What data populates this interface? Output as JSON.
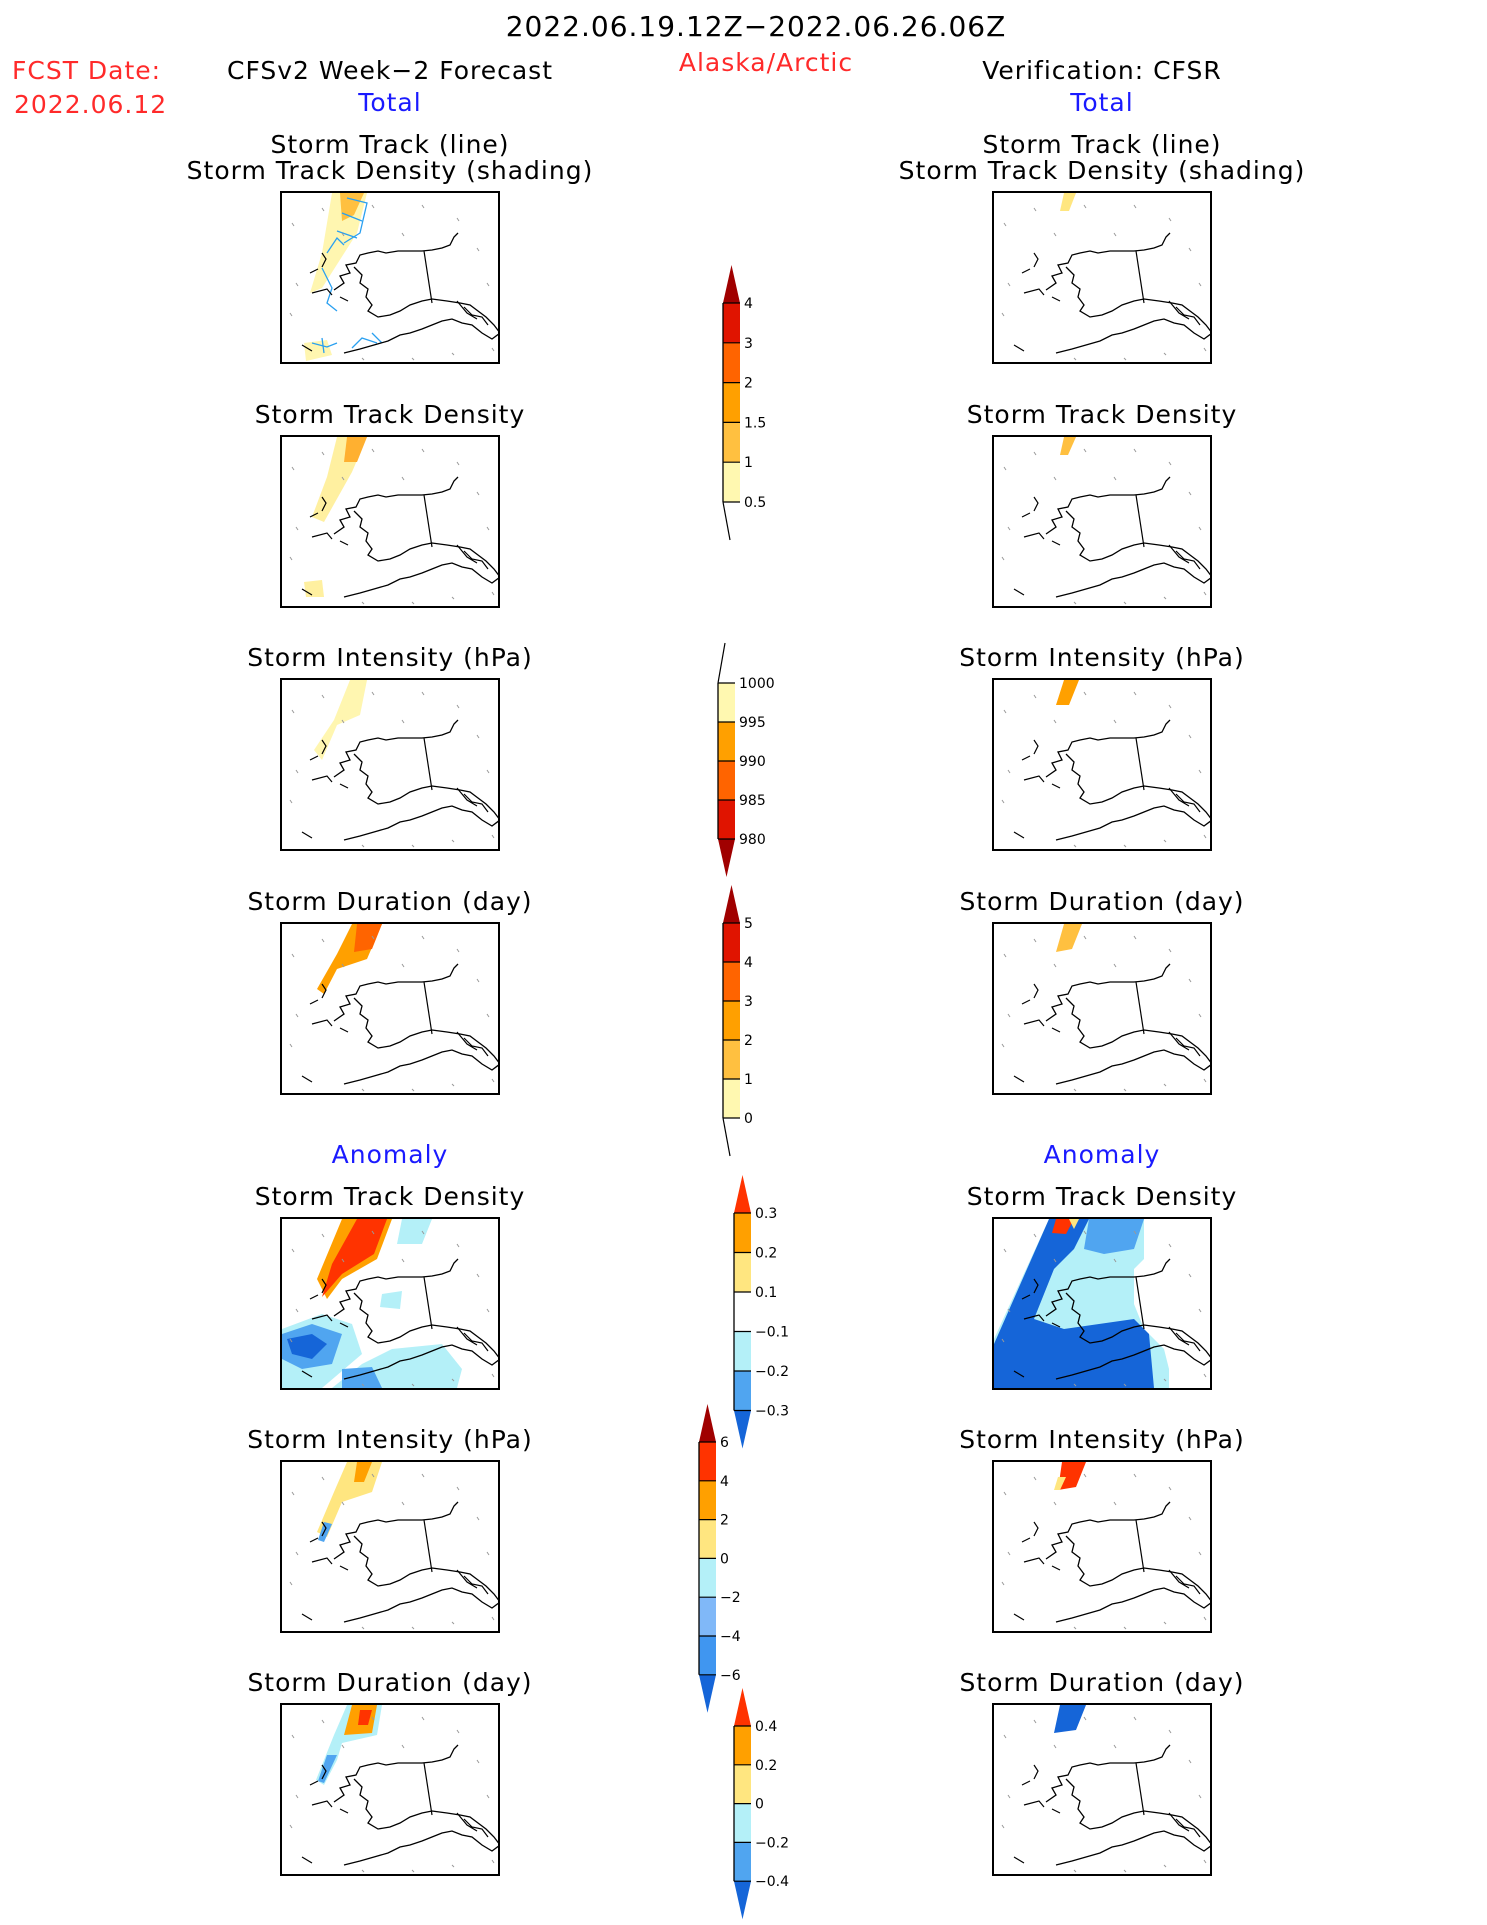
{
  "header": {
    "period": "2022.06.19.12Z−2022.06.26.06Z",
    "region": "Alaska/Arctic",
    "fcst_label": "FCST Date:",
    "fcst_date": "2022.06.12"
  },
  "left": {
    "title": "CFSv2 Week−2 Forecast",
    "total": "Total",
    "anomaly": "Anomaly"
  },
  "right": {
    "title": "Verification: CFSR",
    "total": "Total",
    "anomaly": "Anomaly"
  },
  "panel_titles": {
    "track_line": "Storm Track (line)",
    "track_shading": "Storm Track Density (shading)",
    "density": "Storm Track Density",
    "intensity": "Storm Intensity (hPa)",
    "duration": "Storm Duration (day)"
  },
  "chart_data": [
    {
      "type": "colorbar",
      "name": "Storm Track Density",
      "labels": [
        "4",
        "3",
        "2",
        "1.5",
        "1",
        "0.5"
      ],
      "colors": [
        "#a00000",
        "#e01400",
        "#ff6400",
        "#ffa000",
        "#ffc040",
        "#fff8b0"
      ],
      "extend": "max"
    },
    {
      "type": "colorbar",
      "name": "Storm Intensity (hPa)",
      "labels": [
        "1000",
        "995",
        "990",
        "985",
        "980"
      ],
      "colors": [
        "#fff8b0",
        "#ffa000",
        "#ff6400",
        "#e01400",
        "#a00000"
      ],
      "extend": "min"
    },
    {
      "type": "colorbar",
      "name": "Storm Duration (day)",
      "labels": [
        "5",
        "4",
        "3",
        "2",
        "1",
        "0"
      ],
      "colors": [
        "#a00000",
        "#e01400",
        "#ff6400",
        "#ffa000",
        "#ffc040",
        "#fff8b0"
      ],
      "extend": "max"
    },
    {
      "type": "colorbar",
      "name": "Storm Track Density Anomaly",
      "labels": [
        "0.3",
        "0.2",
        "0.1",
        "−0.1",
        "−0.2",
        "−0.3"
      ],
      "colors": [
        "#ff3300",
        "#ffa000",
        "#ffe680",
        "#ffffff",
        "#b4f0f8",
        "#50a5f0",
        "#1565d8"
      ],
      "extend": "both"
    },
    {
      "type": "colorbar",
      "name": "Storm Intensity Anomaly (hPa)",
      "labels": [
        "6",
        "4",
        "2",
        "0",
        "−2",
        "−4",
        "−6"
      ],
      "colors": [
        "#a00000",
        "#ff3300",
        "#ffa000",
        "#ffe680",
        "#b4f0f8",
        "#80b8f8",
        "#4096f0",
        "#1565d8"
      ],
      "extend": "both"
    },
    {
      "type": "colorbar",
      "name": "Storm Duration Anomaly (day)",
      "labels": [
        "0.4",
        "0.2",
        "0",
        "−0.2",
        "−0.4"
      ],
      "colors": [
        "#ff3300",
        "#ffa000",
        "#ffe680",
        "#b4f0f8",
        "#50a5f0",
        "#1565d8"
      ],
      "extend": "both"
    }
  ]
}
